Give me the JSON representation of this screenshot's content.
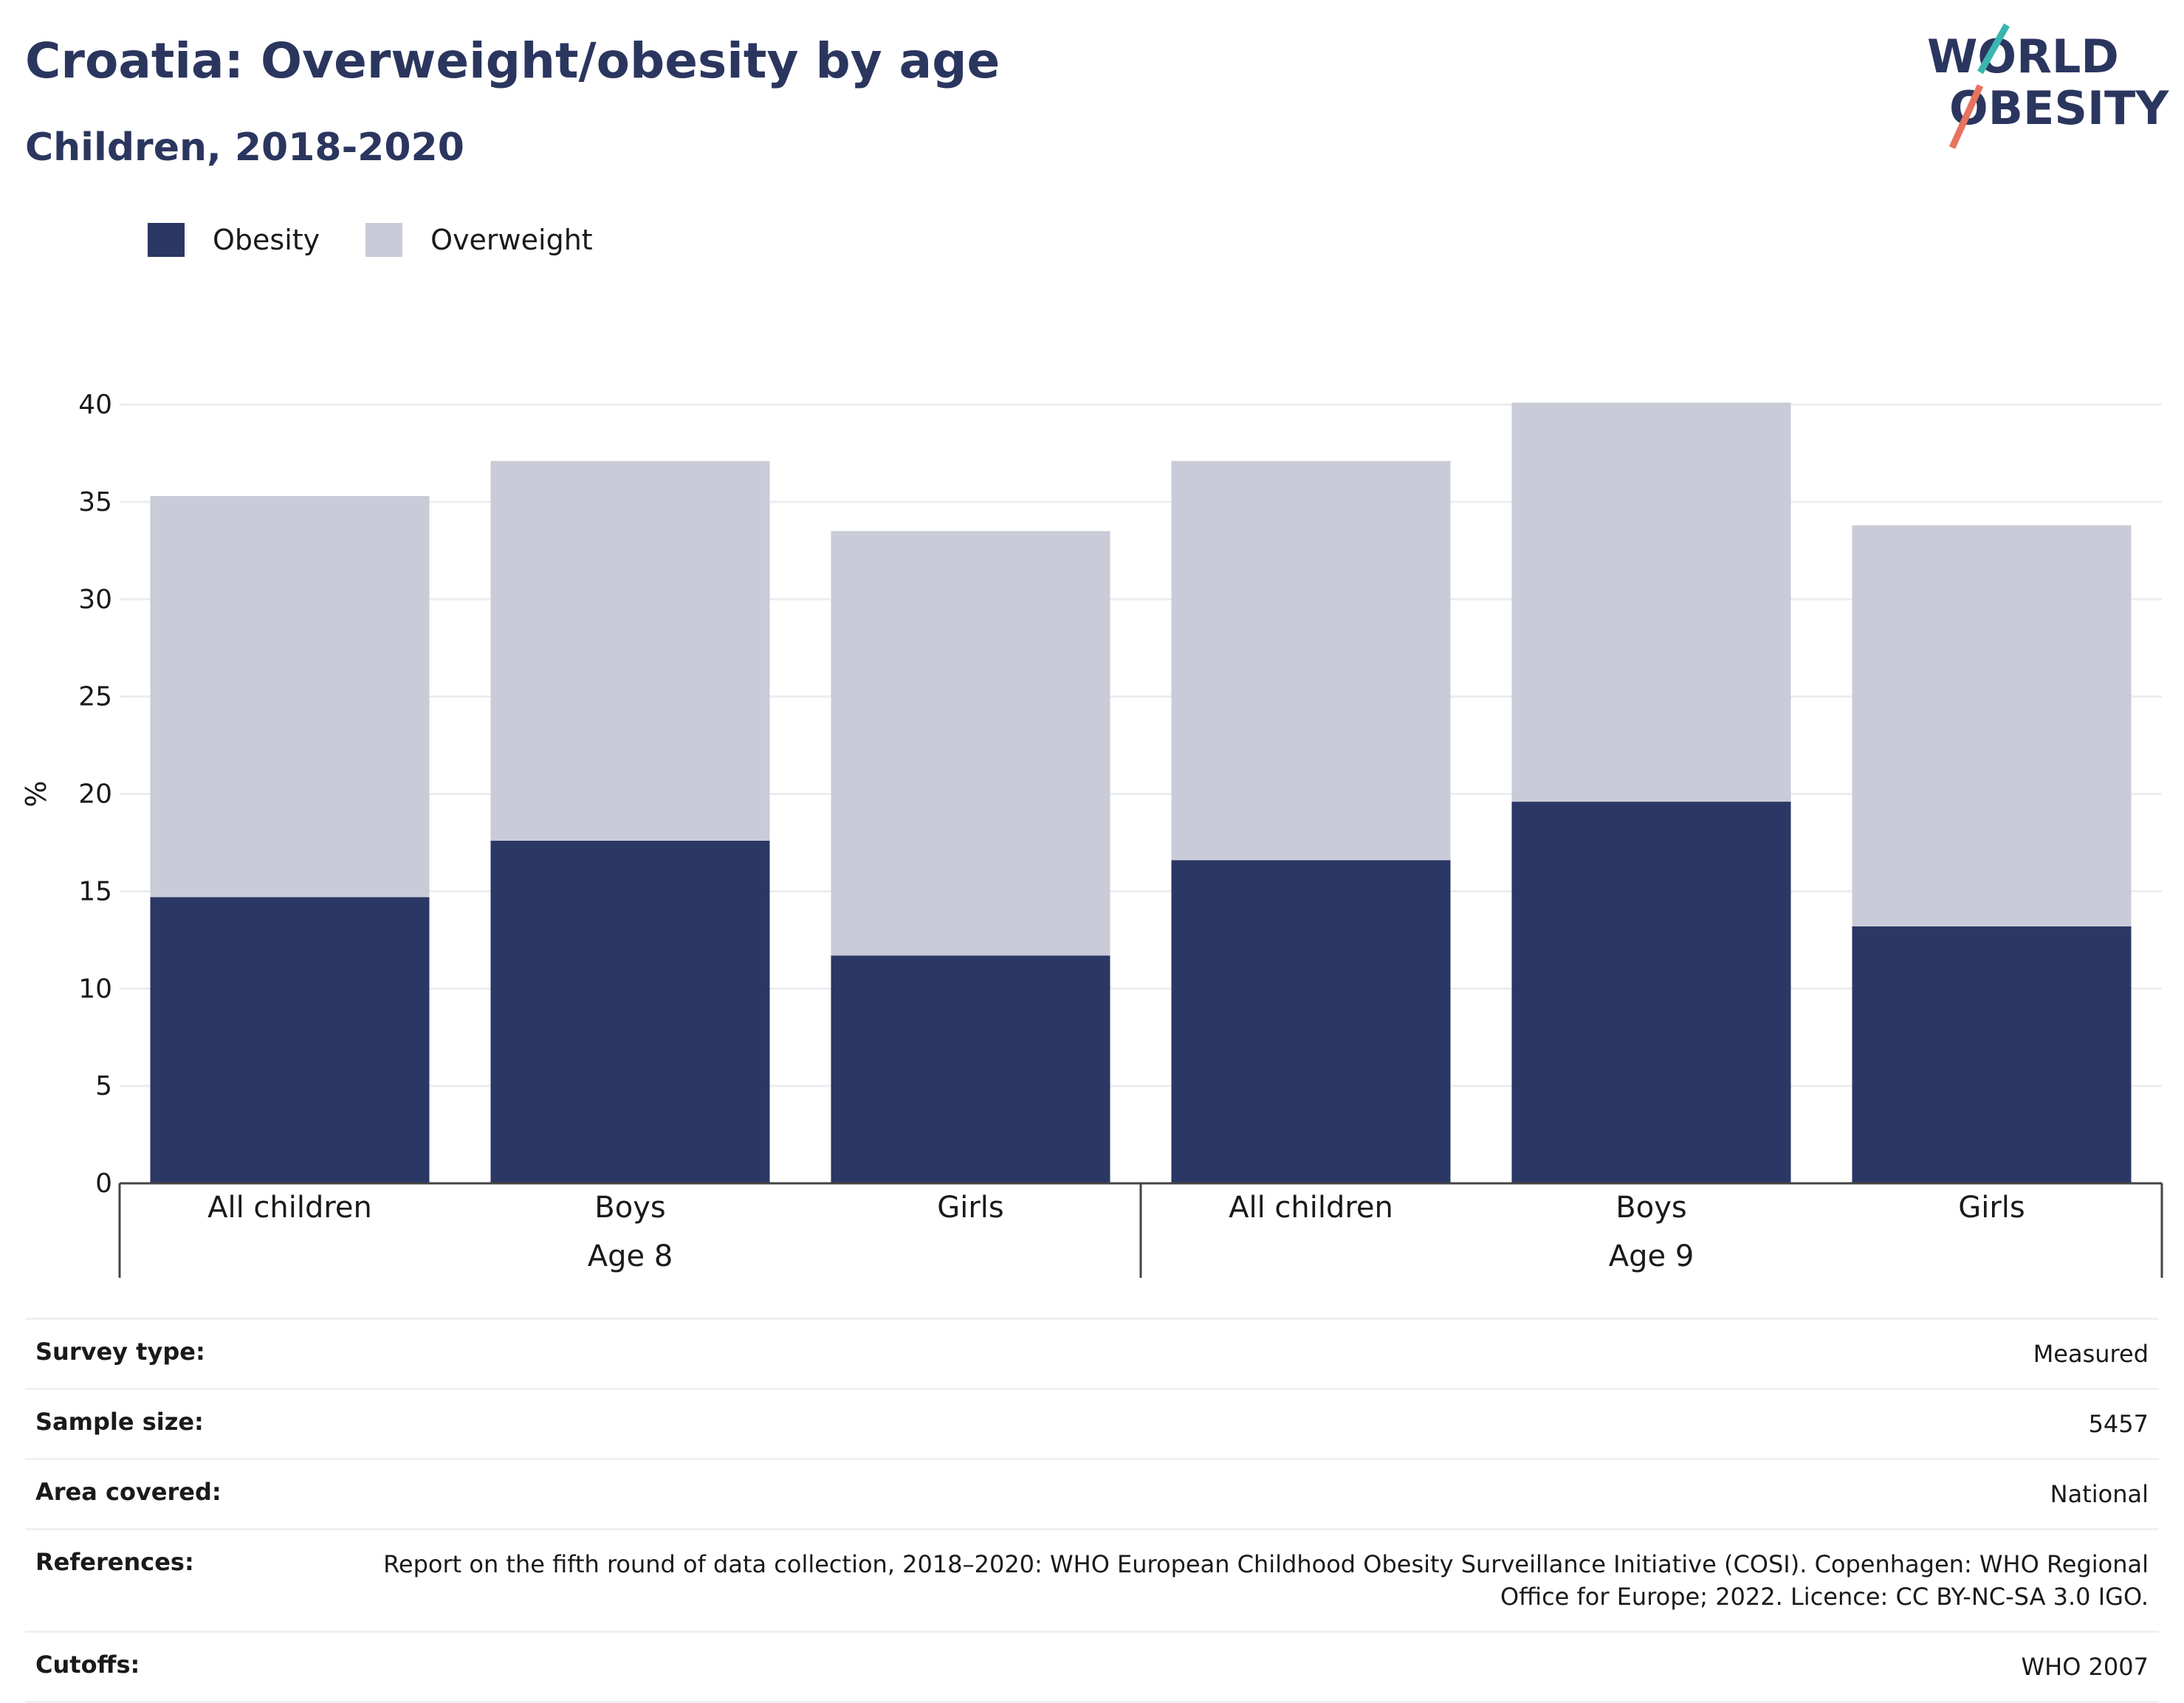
{
  "title": "Croatia: Overweight/obesity by age",
  "subtitle": "Children, 2018-2020",
  "logo": {
    "line1": "WORLD",
    "line2": "OBESITY",
    "text_color": "#2b365f",
    "accent_teal": "#3ab5b0",
    "accent_coral": "#e8735e"
  },
  "legend": [
    {
      "label": "Obesity",
      "color": "#2b3764"
    },
    {
      "label": "Overweight",
      "color": "#cacbd8"
    }
  ],
  "chart_data": {
    "type": "bar",
    "stacked": true,
    "ylabel": "%",
    "ylim": [
      0,
      40
    ],
    "yticks": [
      0,
      5,
      10,
      15,
      20,
      25,
      30,
      35,
      40
    ],
    "grid": true,
    "legend_position": "top-left",
    "groups": [
      {
        "label": "Age 8",
        "categories": [
          "All children",
          "Boys",
          "Girls"
        ]
      },
      {
        "label": "Age 9",
        "categories": [
          "All children",
          "Boys",
          "Girls"
        ]
      }
    ],
    "series": [
      {
        "name": "Obesity",
        "color": "#2b3764",
        "values": [
          14.7,
          17.6,
          11.7,
          16.6,
          19.6,
          13.2
        ]
      },
      {
        "name": "Overweight",
        "color": "#cacbd8",
        "values": [
          20.6,
          19.5,
          21.8,
          20.5,
          20.5,
          20.6
        ]
      }
    ]
  },
  "info": [
    {
      "key": "Survey type:",
      "value": "Measured"
    },
    {
      "key": "Sample size:",
      "value": "5457"
    },
    {
      "key": "Area covered:",
      "value": "National"
    },
    {
      "key": "References:",
      "value": "Report on the fifth round of data collection, 2018–2020: WHO European Childhood Obesity Surveillance Initiative (COSI). Copenhagen: WHO Regional Office for Europe; 2022. Licence: CC BY-NC-SA 3.0 IGO."
    },
    {
      "key": "Cutoffs:",
      "value": "WHO 2007"
    }
  ]
}
